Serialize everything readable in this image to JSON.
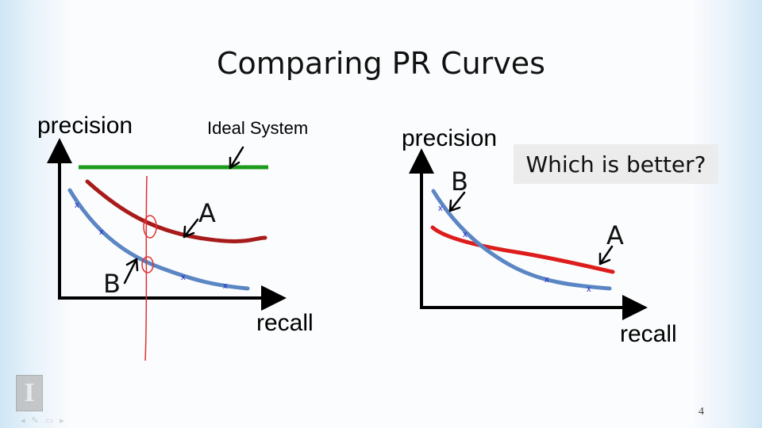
{
  "slide": {
    "title": "Comparing PR Curves",
    "page_number": "4"
  },
  "left_plot": {
    "y_axis_label": "precision",
    "x_axis_label": "recall",
    "ideal_label": "Ideal System",
    "curve_a_label": "A",
    "curve_b_label": "B"
  },
  "right_plot": {
    "y_axis_label": "precision",
    "x_axis_label": "recall",
    "question": "Which is better?",
    "curve_a_label": "A",
    "curve_b_label": "B"
  },
  "colors": {
    "curve_a": "#a81b1b",
    "curve_a_right": "#dd1c1c",
    "curve_b": "#5b86c4",
    "ideal": "#1c9a1c",
    "marker": "#2424c8",
    "annotation": "#e03030"
  },
  "icons": [
    "university-logo-icon",
    "slide-nav-icon"
  ]
}
